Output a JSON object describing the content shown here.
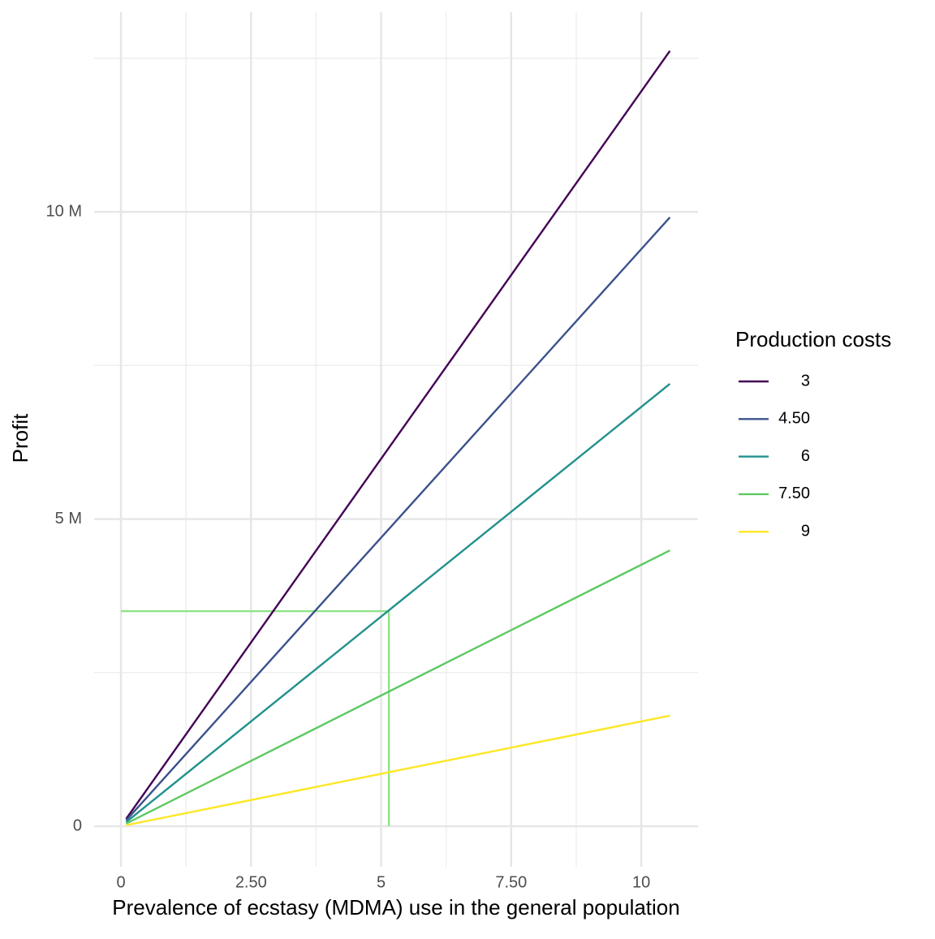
{
  "chart_data": {
    "type": "line",
    "xlabel": "Prevalence of ecstasy (MDMA) use in the general population",
    "ylabel": "Profit",
    "legend_title": "Production costs",
    "legend_position": "right",
    "grid": true,
    "x": [
      0.1,
      10.55
    ],
    "series": [
      {
        "name": "3",
        "color": "#440154",
        "values": [
          120000,
          12620000
        ]
      },
      {
        "name": "4.50",
        "color": "#3b528b",
        "values": [
          95000,
          9910000
        ]
      },
      {
        "name": "6",
        "color": "#21908c",
        "values": [
          68000,
          7200000
        ]
      },
      {
        "name": "7.50",
        "color": "#5dc863",
        "values": [
          42000,
          4490000
        ]
      },
      {
        "name": "9",
        "color": "#fde725",
        "values": [
          17000,
          1800000
        ]
      }
    ],
    "reference": {
      "x0": 0,
      "y0": 0,
      "x": 5.15,
      "y": 3500000,
      "color": "#90e38a"
    },
    "xlim": [
      -0.515,
      11.09
    ],
    "ylim": [
      -660000,
      13250000
    ],
    "xticks": [
      0,
      {
        "value": 2.5,
        "label": "2.50"
      },
      5,
      {
        "value": 7.5,
        "label": "7.50"
      },
      10
    ],
    "x_minor_ticks": [
      1.25,
      3.75,
      6.25,
      8.75
    ],
    "yticks": [
      0,
      {
        "value": 5000000,
        "label": "5 M"
      },
      {
        "value": 10000000,
        "label": "10 M"
      }
    ],
    "y_minor_ticks": [
      2500000,
      7500000,
      12500000
    ]
  }
}
